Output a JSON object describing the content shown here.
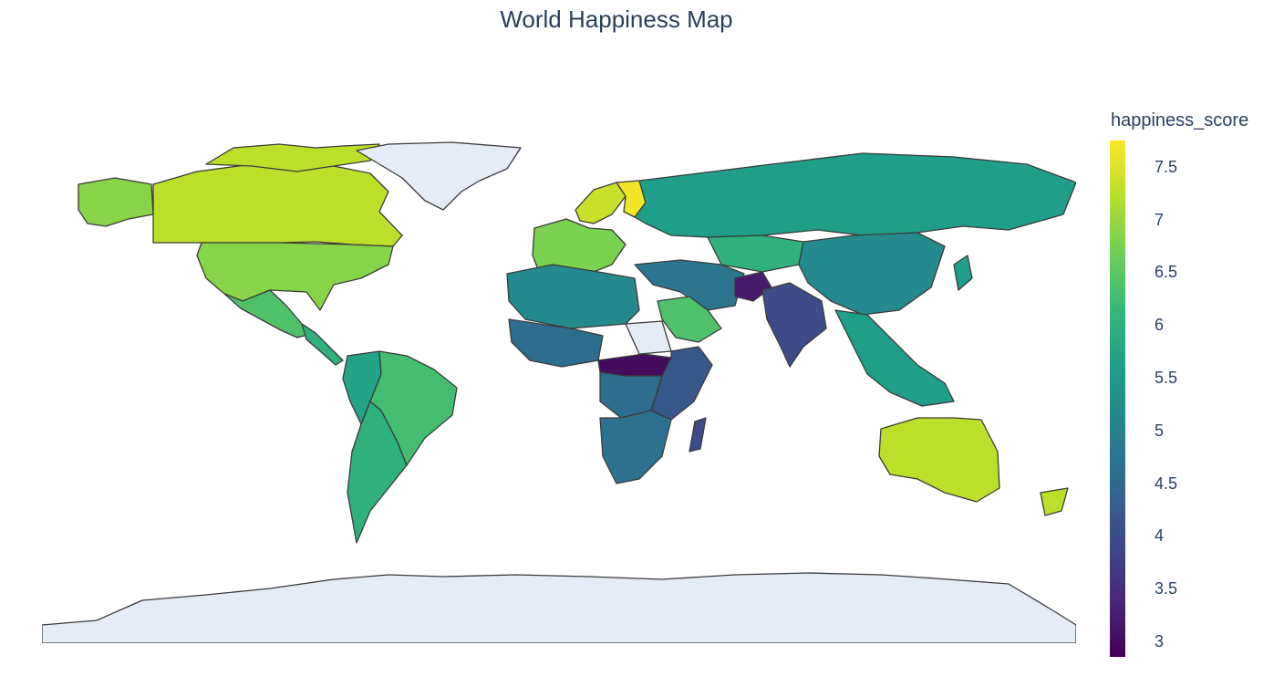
{
  "title": "World Happiness Map",
  "chart_data": {
    "type": "choropleth",
    "metric": "happiness_score",
    "colorscale": "Viridis",
    "colors": {
      "low": "#440154",
      "high": "#fde725",
      "missing": "#e5ecf6",
      "border": "#3b3b3b"
    },
    "colorbar": {
      "title": "happiness_score",
      "range": [
        2.85,
        7.8
      ],
      "ticks": [
        "7.5",
        "7",
        "6.5",
        "6",
        "5.5",
        "5",
        "4.5",
        "4",
        "3.5",
        "3"
      ]
    },
    "regions": [
      {
        "name": "North America (Canada)",
        "value": 7.3
      },
      {
        "name": "Alaska",
        "value": 6.9
      },
      {
        "name": "United States",
        "value": 6.9
      },
      {
        "name": "Mexico",
        "value": 6.4
      },
      {
        "name": "Central America",
        "value": 6.0
      },
      {
        "name": "South America (Brazil region)",
        "value": 6.3
      },
      {
        "name": "Andean countries",
        "value": 5.7
      },
      {
        "name": "Argentina",
        "value": 6.0
      },
      {
        "name": "Greenland",
        "value": null
      },
      {
        "name": "Scandinavia",
        "value": 7.4
      },
      {
        "name": "Finland",
        "value": 7.7
      },
      {
        "name": "Western Europe",
        "value": 6.8
      },
      {
        "name": "Russia",
        "value": 5.6
      },
      {
        "name": "Kazakhstan",
        "value": 6.0
      },
      {
        "name": "China",
        "value": 5.2
      },
      {
        "name": "India",
        "value": 4.0
      },
      {
        "name": "Afghanistan",
        "value": 3.2
      },
      {
        "name": "Middle East",
        "value": 4.8
      },
      {
        "name": "Saudi Arabia",
        "value": 6.4
      },
      {
        "name": "North Africa",
        "value": 5.2
      },
      {
        "name": "West Africa",
        "value": 4.6
      },
      {
        "name": "Central Africa",
        "value": 3.0
      },
      {
        "name": "East Africa",
        "value": 4.2
      },
      {
        "name": "Southern Africa",
        "value": 4.7
      },
      {
        "name": "Madagascar",
        "value": 4.0
      },
      {
        "name": "Southeast Asia",
        "value": 5.6
      },
      {
        "name": "Australia",
        "value": 7.3
      },
      {
        "name": "New Zealand",
        "value": 7.3
      },
      {
        "name": "Antarctica",
        "value": null
      }
    ]
  }
}
